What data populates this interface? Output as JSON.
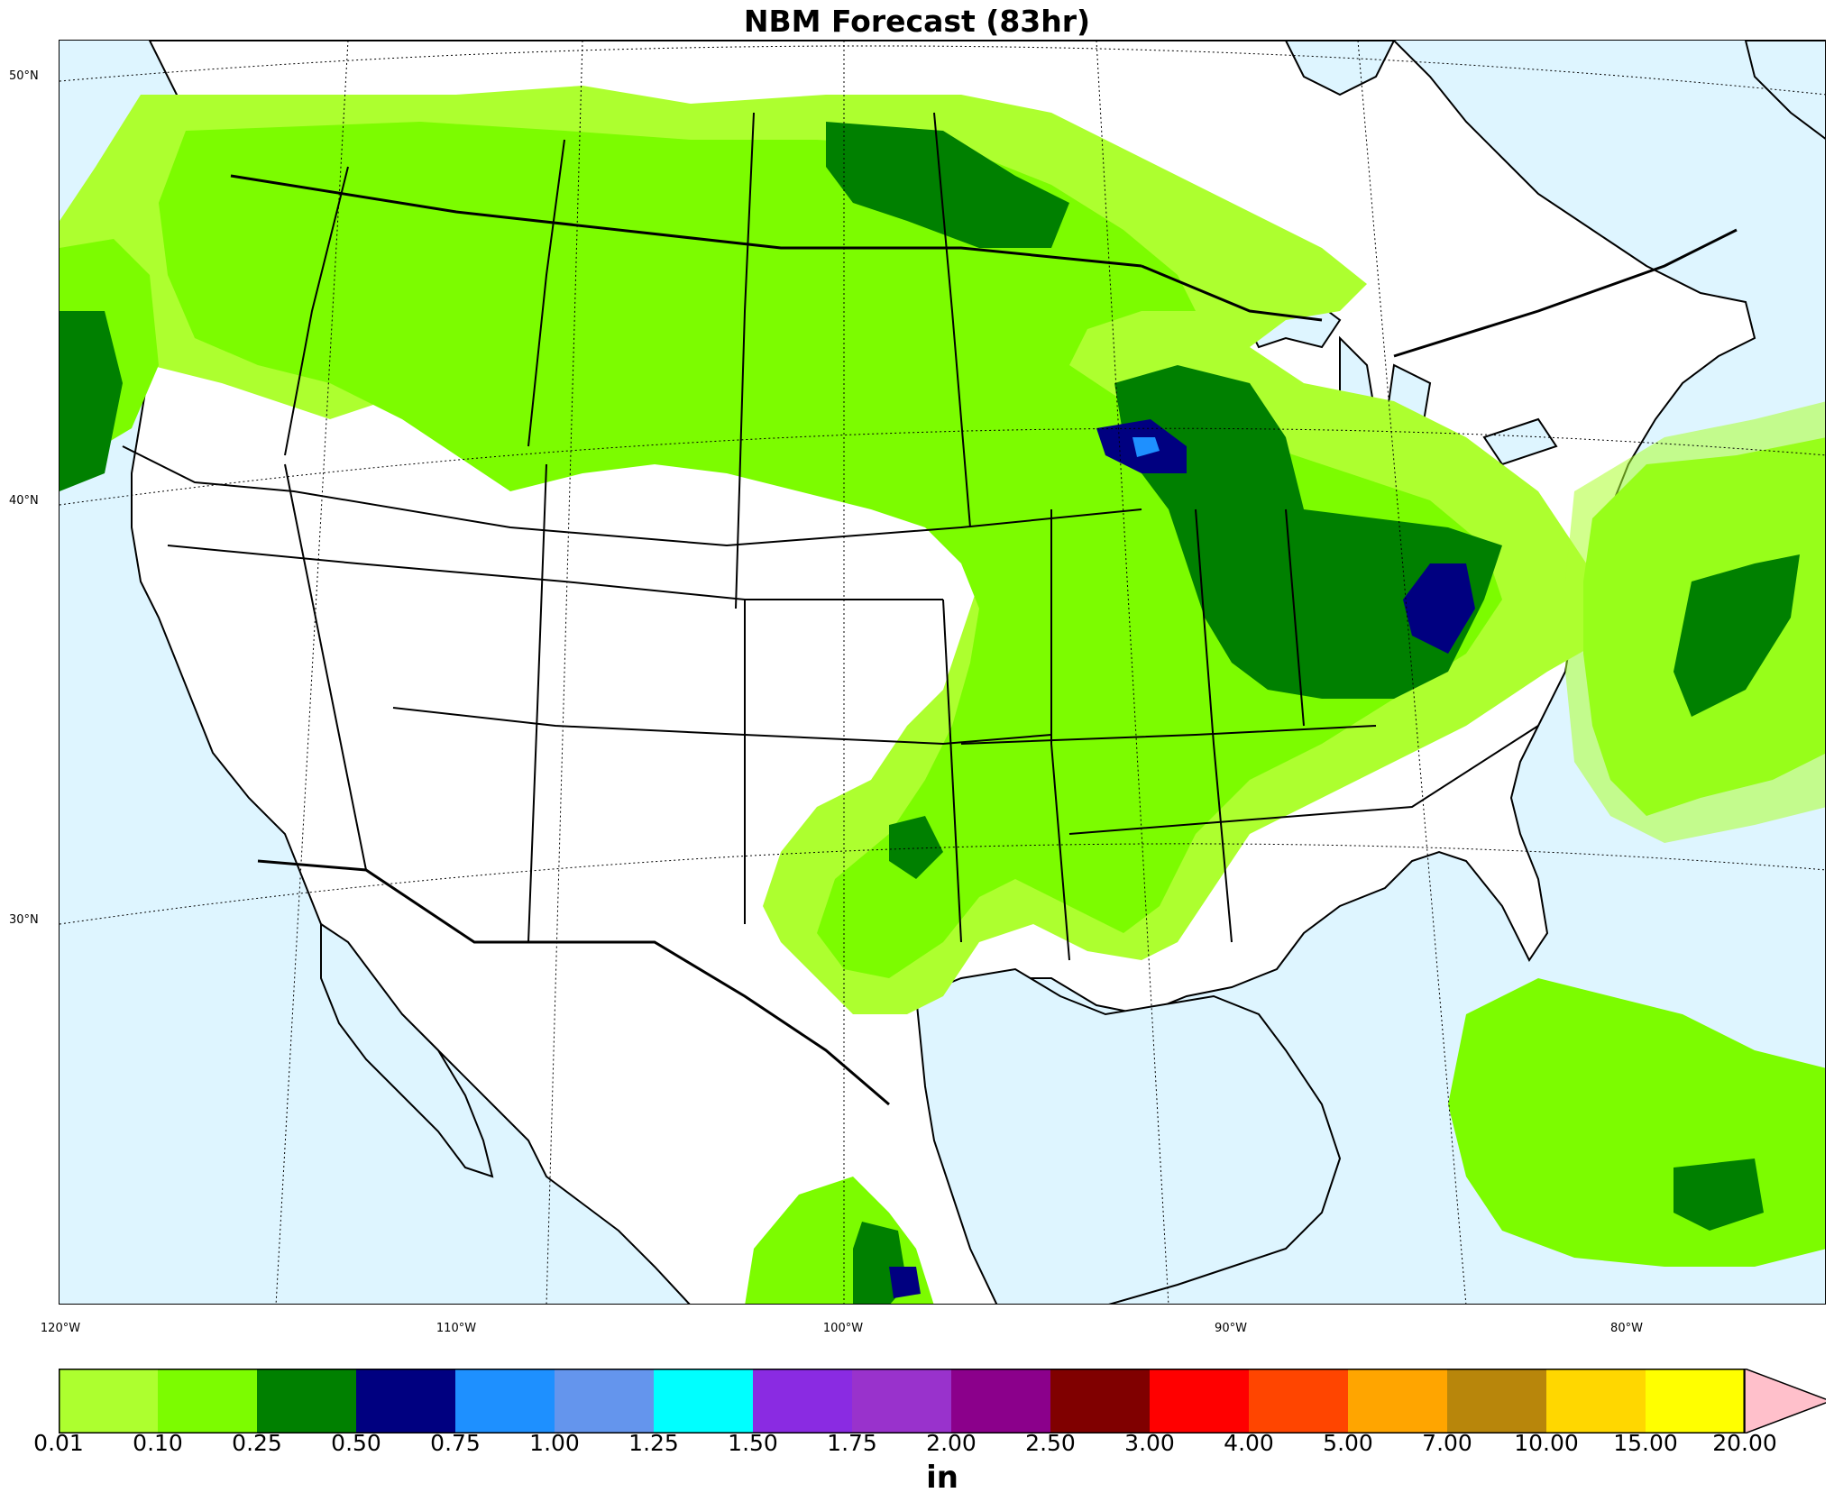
{
  "title": "NBM Forecast (83hr)",
  "units": "in",
  "map": {
    "ocean_color": "#def5ff",
    "land_color": "#ffffff",
    "lat_labels": [
      "50°N",
      "40°N",
      "30°N"
    ],
    "lon_labels": [
      "120°W",
      "110°W",
      "100°W",
      "90°W",
      "80°W"
    ]
  },
  "colorbar": {
    "ticks": [
      "0.01",
      "0.10",
      "0.25",
      "0.50",
      "0.75",
      "1.00",
      "1.25",
      "1.50",
      "1.75",
      "2.00",
      "2.50",
      "3.00",
      "4.00",
      "5.00",
      "7.00",
      "10.00",
      "15.00",
      "20.00"
    ],
    "colors": [
      "#adff2f",
      "#7cfc00",
      "#008000",
      "#000080",
      "#1e90ff",
      "#6495ed",
      "#00ffff",
      "#8a2be2",
      "#9932cc",
      "#8b008b",
      "#800000",
      "#ff0000",
      "#ff4500",
      "#ffa500",
      "#b8860b",
      "#ffd700",
      "#ffff00"
    ],
    "extend_color": "#ffc0cb"
  }
}
